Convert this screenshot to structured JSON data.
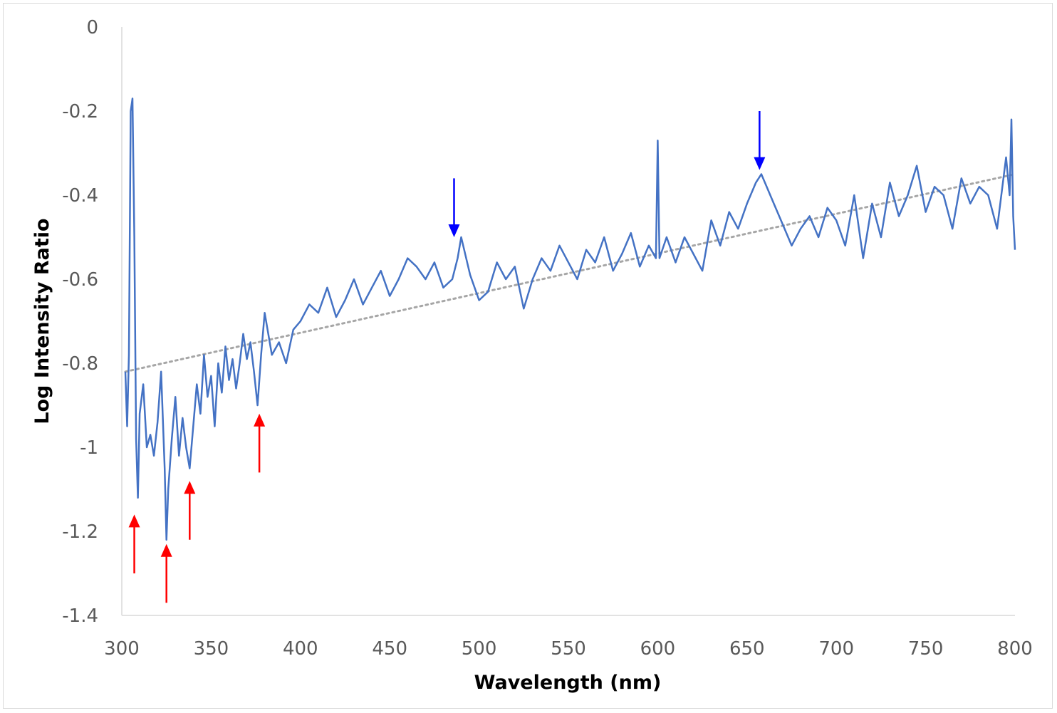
{
  "chart_data": {
    "type": "line",
    "xlabel": "Wavelength (nm)",
    "ylabel": "Log Intensity Ratio",
    "xlim": [
      300,
      800
    ],
    "ylim": [
      -1.4,
      0
    ],
    "x_ticks": [
      "300",
      "350",
      "400",
      "450",
      "500",
      "550",
      "600",
      "650",
      "700",
      "750",
      "800"
    ],
    "y_ticks": [
      "0",
      "-0.2",
      "-0.4",
      "-0.6",
      "-0.8",
      "-1",
      "-1.2",
      "-1.4"
    ],
    "grid": false,
    "legend": "none",
    "series": [
      {
        "color": "#4472c4",
        "style": "solid",
        "x": [
          302,
          303,
          304,
          305,
          306,
          307,
          308,
          309,
          310,
          312,
          314,
          316,
          318,
          320,
          322,
          324,
          325,
          326,
          328,
          330,
          332,
          334,
          336,
          338,
          340,
          342,
          344,
          346,
          348,
          350,
          352,
          354,
          356,
          358,
          360,
          362,
          364,
          366,
          368,
          370,
          372,
          374,
          376,
          378,
          380,
          384,
          388,
          392,
          396,
          400,
          405,
          410,
          415,
          420,
          425,
          430,
          435,
          440,
          445,
          450,
          455,
          460,
          465,
          470,
          475,
          480,
          485,
          488,
          490,
          495,
          500,
          505,
          510,
          515,
          520,
          525,
          530,
          535,
          540,
          545,
          550,
          555,
          560,
          565,
          570,
          575,
          580,
          585,
          590,
          595,
          599,
          600,
          601,
          605,
          610,
          615,
          620,
          625,
          630,
          635,
          640,
          645,
          650,
          655,
          658,
          660,
          665,
          670,
          675,
          680,
          685,
          690,
          695,
          700,
          705,
          710,
          715,
          720,
          725,
          730,
          735,
          740,
          745,
          750,
          755,
          760,
          765,
          770,
          775,
          780,
          785,
          790,
          795,
          797,
          798,
          799,
          800
        ],
        "y": [
          -0.82,
          -0.95,
          -0.78,
          -0.2,
          -0.17,
          -0.5,
          -0.98,
          -1.12,
          -0.92,
          -0.85,
          -1.0,
          -0.97,
          -1.02,
          -0.94,
          -0.82,
          -1.05,
          -1.22,
          -1.1,
          -0.98,
          -0.88,
          -1.02,
          -0.93,
          -1.0,
          -1.05,
          -0.95,
          -0.85,
          -0.92,
          -0.78,
          -0.88,
          -0.83,
          -0.95,
          -0.8,
          -0.87,
          -0.76,
          -0.84,
          -0.79,
          -0.86,
          -0.8,
          -0.73,
          -0.79,
          -0.75,
          -0.82,
          -0.9,
          -0.78,
          -0.68,
          -0.78,
          -0.75,
          -0.8,
          -0.72,
          -0.7,
          -0.66,
          -0.68,
          -0.62,
          -0.69,
          -0.65,
          -0.6,
          -0.66,
          -0.62,
          -0.58,
          -0.64,
          -0.6,
          -0.55,
          -0.57,
          -0.6,
          -0.56,
          -0.62,
          -0.6,
          -0.55,
          -0.5,
          -0.59,
          -0.65,
          -0.63,
          -0.56,
          -0.6,
          -0.57,
          -0.67,
          -0.6,
          -0.55,
          -0.58,
          -0.52,
          -0.56,
          -0.6,
          -0.53,
          -0.56,
          -0.5,
          -0.58,
          -0.54,
          -0.49,
          -0.57,
          -0.52,
          -0.55,
          -0.27,
          -0.55,
          -0.5,
          -0.56,
          -0.5,
          -0.54,
          -0.58,
          -0.46,
          -0.52,
          -0.44,
          -0.48,
          -0.42,
          -0.37,
          -0.35,
          -0.37,
          -0.42,
          -0.47,
          -0.52,
          -0.48,
          -0.45,
          -0.5,
          -0.43,
          -0.46,
          -0.52,
          -0.4,
          -0.55,
          -0.42,
          -0.5,
          -0.37,
          -0.45,
          -0.4,
          -0.33,
          -0.44,
          -0.38,
          -0.4,
          -0.48,
          -0.36,
          -0.42,
          -0.38,
          -0.4,
          -0.48,
          -0.31,
          -0.4,
          -0.22,
          -0.45,
          -0.53
        ]
      },
      {
        "color": "#a6a6a6",
        "style": "dotted",
        "x": [
          302,
          800
        ],
        "y": [
          -0.82,
          -0.35
        ]
      }
    ],
    "annotations": [
      {
        "type": "arrow-up",
        "color": "#ff0000",
        "x": 307,
        "y_tip": -1.16,
        "y_tail": -1.3
      },
      {
        "type": "arrow-up",
        "color": "#ff0000",
        "x": 325,
        "y_tip": -1.23,
        "y_tail": -1.37
      },
      {
        "type": "arrow-up",
        "color": "#ff0000",
        "x": 338,
        "y_tip": -1.08,
        "y_tail": -1.22
      },
      {
        "type": "arrow-up",
        "color": "#ff0000",
        "x": 377,
        "y_tip": -0.92,
        "y_tail": -1.06
      },
      {
        "type": "arrow-down",
        "color": "#0000ff",
        "x": 486,
        "y_tip": -0.5,
        "y_tail": -0.36
      },
      {
        "type": "arrow-down",
        "color": "#0000ff",
        "x": 657,
        "y_tip": -0.34,
        "y_tail": -0.2
      }
    ]
  }
}
